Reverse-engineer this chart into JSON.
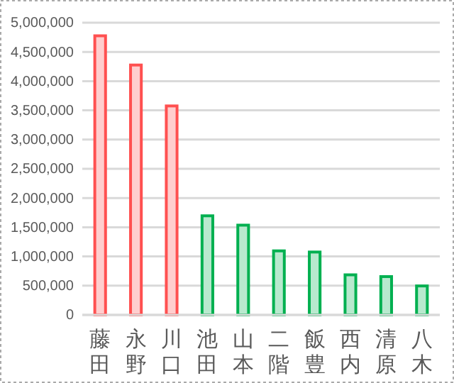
{
  "chart_data": {
    "type": "bar",
    "categories": [
      "藤田",
      "永野",
      "川口",
      "池田",
      "山本",
      "二階",
      "飯豊",
      "西内",
      "清原",
      "八木"
    ],
    "values": [
      4800000,
      4300000,
      3600000,
      1720000,
      1560000,
      1120000,
      1100000,
      710000,
      680000,
      520000
    ],
    "colors": [
      "#ff5050",
      "#ff5050",
      "#ff5050",
      "#00b050",
      "#00b050",
      "#00b050",
      "#00b050",
      "#00b050",
      "#00b050",
      "#00b050"
    ],
    "ylim": [
      0,
      5000000
    ],
    "yticks": [
      {
        "value": 0,
        "label": "0"
      },
      {
        "value": 500000,
        "label": "500,000"
      },
      {
        "value": 1000000,
        "label": "1,000,000"
      },
      {
        "value": 1500000,
        "label": "1,500,000"
      },
      {
        "value": 2000000,
        "label": "2,000,000"
      },
      {
        "value": 2500000,
        "label": "2,500,000"
      },
      {
        "value": 3000000,
        "label": "3,000,000"
      },
      {
        "value": 3500000,
        "label": "3,500,000"
      },
      {
        "value": 4000000,
        "label": "4,000,000"
      },
      {
        "value": 4500000,
        "label": "4,500,000"
      },
      {
        "value": 5000000,
        "label": "5,000,000"
      }
    ],
    "grid": "y"
  }
}
